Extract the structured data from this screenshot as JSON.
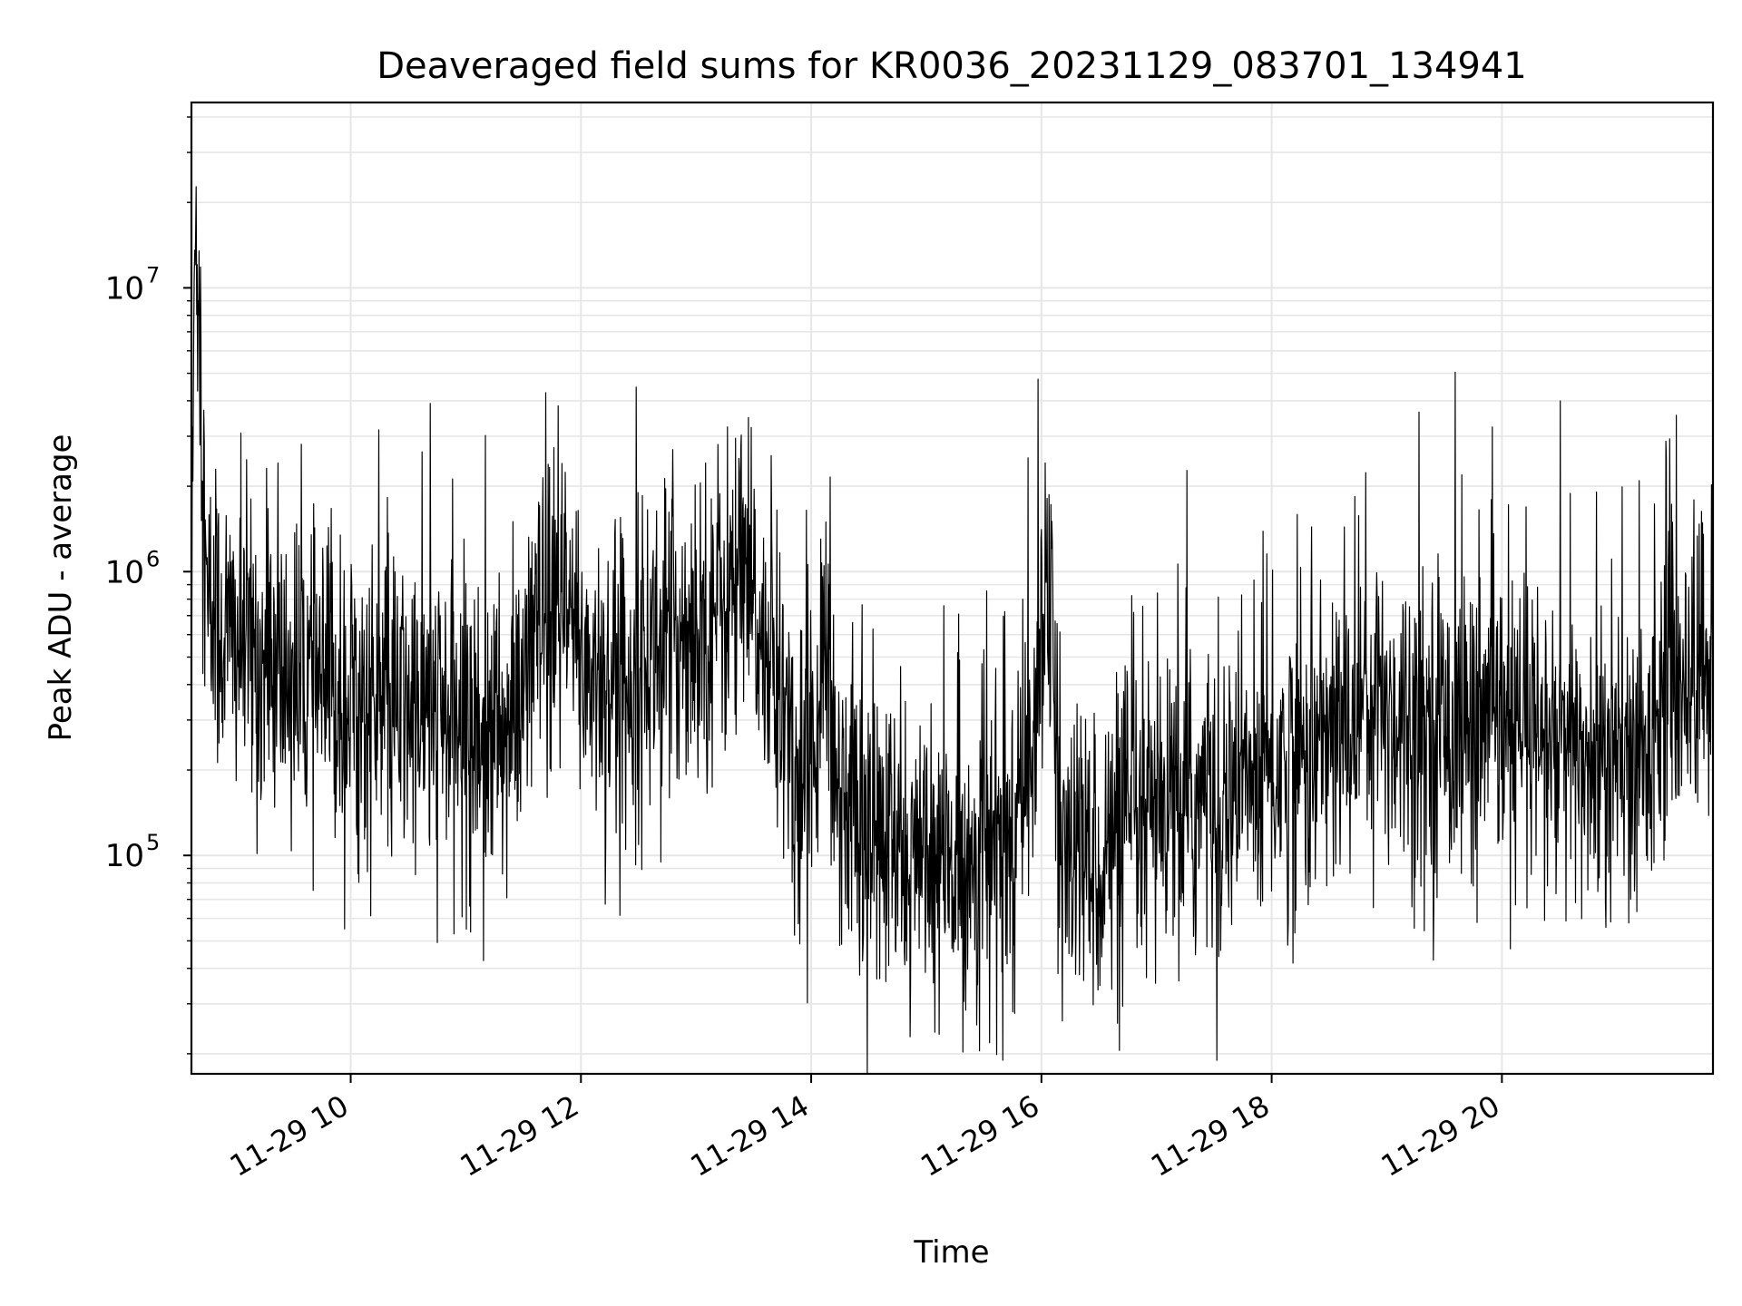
{
  "chart_data": {
    "type": "line",
    "title": "Deaveraged field sums for KR0036_20231129_083701_134941",
    "xlabel": "Time",
    "ylabel": "Peak ADU - average",
    "yscale": "log",
    "grid": true,
    "line_color": "#000000",
    "grid_color": "#e6e6e6",
    "xlim": [
      "2023-11-29 08:37",
      "2023-11-29 21:50"
    ],
    "ylim": [
      17000,
      45000000
    ],
    "x_ticks": [
      {
        "value": "2023-11-29 10:00",
        "label": "11-29 10"
      },
      {
        "value": "2023-11-29 12:00",
        "label": "11-29 12"
      },
      {
        "value": "2023-11-29 14:00",
        "label": "11-29 14"
      },
      {
        "value": "2023-11-29 16:00",
        "label": "11-29 16"
      },
      {
        "value": "2023-11-29 18:00",
        "label": "11-29 18"
      },
      {
        "value": "2023-11-29 20:00",
        "label": "11-29 20"
      }
    ],
    "y_ticks": [
      {
        "value": 100000,
        "base": "10",
        "exp": "5"
      },
      {
        "value": 1000000,
        "base": "10",
        "exp": "6"
      },
      {
        "value": 10000000,
        "base": "10",
        "exp": "7"
      }
    ],
    "series": [
      {
        "x": [
          "2023-11-29 08:37",
          "2023-11-29 08:39",
          "2023-11-29 08:45",
          "2023-11-29 08:55",
          "2023-11-29 09:05",
          "2023-11-29 09:15",
          "2023-11-29 09:30",
          "2023-11-29 09:45",
          "2023-11-29 10:00",
          "2023-11-29 10:20",
          "2023-11-29 10:40",
          "2023-11-29 11:00",
          "2023-11-29 11:15",
          "2023-11-29 11:25",
          "2023-11-29 11:35",
          "2023-11-29 11:50",
          "2023-11-29 12:05",
          "2023-11-29 12:20",
          "2023-11-29 12:40",
          "2023-11-29 13:00",
          "2023-11-29 13:15",
          "2023-11-29 13:25",
          "2023-11-29 13:35",
          "2023-11-29 13:45",
          "2023-11-29 13:55",
          "2023-11-29 14:05",
          "2023-11-29 14:15",
          "2023-11-29 14:30",
          "2023-11-29 14:45",
          "2023-11-29 15:00",
          "2023-11-29 15:15",
          "2023-11-29 15:30",
          "2023-11-29 15:45",
          "2023-11-29 15:55",
          "2023-11-29 16:00",
          "2023-11-29 16:05",
          "2023-11-29 16:10",
          "2023-11-29 16:25",
          "2023-11-29 16:45",
          "2023-11-29 17:00",
          "2023-11-29 17:20",
          "2023-11-29 17:40",
          "2023-11-29 18:00",
          "2023-11-29 18:20",
          "2023-11-29 18:40",
          "2023-11-29 18:50",
          "2023-11-29 19:00",
          "2023-11-29 19:20",
          "2023-11-29 19:40",
          "2023-11-29 20:00",
          "2023-11-29 20:20",
          "2023-11-29 20:40",
          "2023-11-29 21:00",
          "2023-11-29 21:10",
          "2023-11-29 21:15",
          "2023-11-29 21:20",
          "2023-11-29 21:30",
          "2023-11-29 21:45",
          "2023-11-29 21:50"
        ],
        "y": [
          500000,
          25000000,
          700000,
          600000,
          550000,
          450000,
          420000,
          380000,
          350000,
          320000,
          320000,
          280000,
          260000,
          270000,
          550000,
          700000,
          450000,
          400000,
          550000,
          650000,
          800000,
          900000,
          550000,
          350000,
          150000,
          450000,
          180000,
          120000,
          100000,
          85000,
          90000,
          100000,
          110000,
          200000,
          900000,
          600000,
          100000,
          95000,
          110000,
          130000,
          150000,
          170000,
          200000,
          230000,
          280000,
          400000,
          320000,
          300000,
          290000,
          270000,
          240000,
          220000,
          200000,
          190000,
          190000,
          400000,
          420000,
          450000,
          480000
        ],
        "noise_decades": 0.28
      }
    ]
  }
}
